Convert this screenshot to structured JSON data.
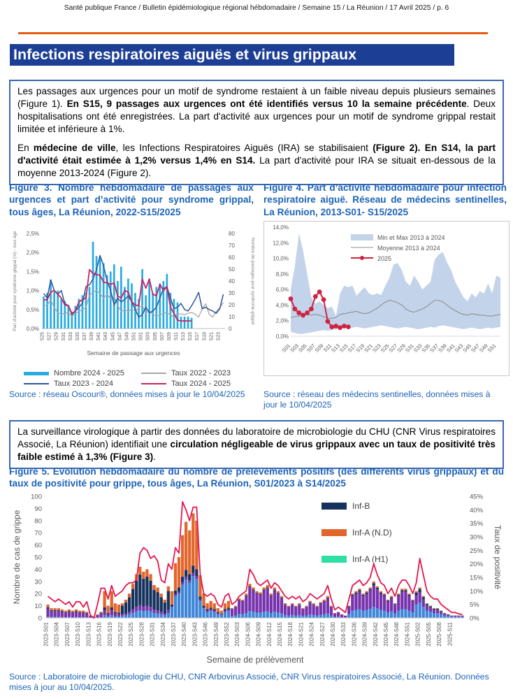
{
  "page": {
    "header": "Santé publique France / Bulletin épidémiologique régional hébdomadaire / Semaine 15 / La Réunion / 17 Avril 2025 / p. 6",
    "title": "Infections respiratoires aiguës et virus grippaux"
  },
  "colors": {
    "accent_orange": "#E75A12",
    "title_bar_blue": "#1C3E94",
    "caption_blue": "#1C63B8",
    "box_border_blue": "#3B66B0",
    "fig3_bar": "#29ABE2",
    "fig3_line_2022": "#A6A6A6",
    "fig3_line_2023": "#2F5597",
    "fig3_line_2024": "#C9215F",
    "fig4_band": "#C3D4EA",
    "fig4_mean": "#8F8F8F",
    "fig4_2025": "#CF2342",
    "fig5_navy": "#16335E",
    "fig5_orange": "#E2662C",
    "fig5_mint": "#2EDFA3",
    "fig5_purple": "#7633AD",
    "fig5_blue": "#3F86D8",
    "fig5_line": "#E3174F"
  },
  "box1": {
    "paragraphs": [
      [
        {
          "t": "Les passages aux urgences pour un motif de syndrome restaient à un faible niveau depuis plusieurs semaines (Figure 1). ",
          "b": 0
        },
        {
          "t": "En S15, 9 passages aux urgences ont été identifiés versus 10 la semaine précédente",
          "b": 1
        },
        {
          "t": ". Deux hospitalisations ont été enregistrées. La part d'activité aux urgences pour un motif de syndrome grippal restait limitée et inférieure à 1%.",
          "b": 0
        }
      ],
      [
        {
          "t": "En ",
          "b": 0
        },
        {
          "t": "médecine de ville",
          "b": 1
        },
        {
          "t": ", les Infections Respiratoires Aiguës (IRA) se stabilisaient ",
          "b": 0
        },
        {
          "t": "(Figure 2). En S14, la part d'activité était estimée à 1,2% versus 1,4% en S14.",
          "b": 1
        },
        {
          "t": " La part d'activité pour IRA se situait en-dessous de la moyenne 2013-2024 (Figure 2).",
          "b": 0
        }
      ]
    ]
  },
  "box2": {
    "paragraphs": [
      [
        {
          "t": "La surveillance virologique à partir des données du laboratoire de microbiologie du CHU (CNR Virus respiratoires Associé, La Réunion) identifiait une ",
          "b": 0
        },
        {
          "t": "circulation négligeable de virus grippaux avec un taux de positivité très faible estimé à 1,3% (Figure 3)",
          "b": 1
        },
        {
          "t": ".",
          "b": 0
        }
      ]
    ]
  },
  "figure3": {
    "caption": "Figure 3. Nombre hebdomadaire de passages aux urgences et part d’activité pour syndrome grippal, tous âges, La Réunion, 2022-S15/2025",
    "source": "Source : réseau Oscour®,  données mises à jour le 10/04/2025",
    "legend": [
      {
        "label": "Nombre 2024 - 2025",
        "color": "#29ABE2",
        "kind": "bar"
      },
      {
        "label": "Taux 2022 - 2023",
        "color": "#A6A6A6",
        "kind": "line"
      },
      {
        "label": "Taux 2023 - 2024",
        "color": "#2F5597",
        "kind": "line"
      },
      {
        "label": "Taux 2024 - 2025",
        "color": "#C9215F",
        "kind": "line"
      }
    ]
  },
  "figure4": {
    "caption": "Figure 4.  Part d’activité hebdomadaire pour infection respiratoire aiguë. Réseau de médecins sentinelles, La Réunion, 2013-S01-  S15/2025",
    "source": "Source : réseau des médecins sentinelles, données mises à jour le 10/04/2025"
  },
  "figure5": {
    "caption": "Figure 5. Evolution hebdomadaire du nombre de prélèvements positifs (des différents virus grippaux) et du taux de positivité pour grippe, tous âges, La Réunion, S01/2023 à S14/2025",
    "source": "Source : Laboratoire de microbiologie du CHU, CNR Arbovirus Associé, CNR Virus respiratoires Associé, La Réunion. Données mises à jour au 10/04/2025."
  },
  "chart_data": [
    {
      "id": "fig3",
      "type": "bar",
      "n_weeks": 52,
      "tick_labels": [
        "S25",
        "S27",
        "S29",
        "S31",
        "S33",
        "S35",
        "S37",
        "S39",
        "S41",
        "S43",
        "S45",
        "S47",
        "S49",
        "S51",
        "S01",
        "S03",
        "S05",
        "S07",
        "S09",
        "S11",
        "S13",
        "S15",
        "S17",
        "S19",
        "S21",
        "S23"
      ],
      "xlabel": "Semaine de passage aux urgences",
      "ylabel_left": "Part d'activité pour syndrome grippal (%) - tous âge",
      "ylabel_right": "Nombre de passages pour syndrome grippal",
      "ylim_left": [
        0,
        2.5
      ],
      "ylim_right": [
        0,
        80
      ],
      "yticks_left": [
        "0,0%",
        "0,5%",
        "1,0%",
        "1,5%",
        "2,0%",
        "2,5%"
      ],
      "yticks_right": [
        "0",
        "10",
        "20",
        "30",
        "40",
        "50",
        "60",
        "70",
        "80"
      ],
      "bars_name": "Nombre 2024 - 2025",
      "bars_color": "#29ABE2",
      "bars": [
        27,
        30,
        41,
        31,
        32,
        25,
        23,
        20,
        12,
        19,
        25,
        28,
        30,
        35,
        73,
        61,
        60,
        55,
        45,
        48,
        54,
        40,
        52,
        35,
        42,
        38,
        30,
        25,
        50,
        28,
        42,
        30,
        35,
        38,
        40,
        46,
        30,
        25,
        22,
        10,
        10,
        10,
        9
      ],
      "lines": [
        {
          "name": "Taux 2022 - 2023",
          "color": "#A6A6A6",
          "width": 1.3,
          "values": [
            0.6,
            0.62,
            0.75,
            0.55,
            0.42,
            0.38,
            0.4,
            0.42,
            0.32,
            0.4,
            0.45,
            0.5,
            0.55,
            0.88,
            0.95,
            1.0,
            0.92,
            0.8,
            0.9,
            0.78,
            0.85,
            0.6,
            0.45,
            0.5,
            0.45,
            0.52,
            0.45,
            0.55,
            0.6,
            0.42,
            0.45,
            0.38,
            0.32,
            0.36,
            0.4,
            0.42,
            0.36,
            0.3,
            0.4,
            0.38,
            0.36,
            0.4,
            0.42,
            0.38,
            0.3,
            0.52,
            0.65,
            0.38,
            0.3,
            0.45,
            0.55,
            0.68
          ]
        },
        {
          "name": "Taux 2023 - 2024",
          "color": "#2F5597",
          "width": 1.5,
          "values": [
            0.92,
            0.8,
            1.28,
            1.0,
            0.9,
            1.0,
            0.66,
            0.6,
            0.36,
            0.46,
            0.56,
            0.66,
            1.1,
            1.15,
            1.3,
            1.55,
            1.92,
            1.65,
            1.25,
            1.0,
            0.62,
            0.8,
            0.7,
            0.76,
            0.86,
            0.7,
            0.5,
            0.3,
            0.36,
            0.56,
            0.42,
            0.46,
            0.56,
            0.8,
            1.05,
            1.1,
            0.8,
            0.52,
            0.56,
            0.66,
            0.5,
            0.46,
            0.6,
            0.76,
            0.95,
            0.52,
            0.56,
            0.5,
            0.46,
            0.4,
            0.52,
            0.9
          ]
        },
        {
          "name": "Taux 2024 - 2025",
          "color": "#C9215F",
          "width": 1.8,
          "values": [
            0.75,
            0.76,
            0.96,
            1.0,
            0.9,
            0.8,
            0.62,
            0.6,
            0.4,
            0.46,
            0.7,
            0.76,
            0.8,
            1.55,
            1.45,
            1.42,
            1.4,
            1.22,
            1.2,
            1.16,
            1.2,
            0.86,
            0.8,
            1.0,
            0.96,
            0.7,
            0.62,
            0.6,
            1.3,
            1.06,
            1.3,
            0.9,
            0.86,
            1.16,
            1.0,
            1.1,
            0.56,
            0.4,
            0.22,
            0.2,
            0.2,
            0.2,
            0.2
          ]
        }
      ]
    },
    {
      "id": "fig4",
      "type": "area",
      "n_weeks": 52,
      "tick_labels": [
        "S01",
        "S03",
        "S05",
        "S07",
        "S09",
        "S11",
        "S13",
        "S15",
        "S17",
        "S19",
        "S21",
        "S23",
        "S25",
        "S27",
        "S29",
        "S31",
        "S33",
        "S35",
        "S37",
        "S39",
        "S41",
        "S43",
        "S45",
        "S47",
        "S49",
        "S51"
      ],
      "ylim": [
        0,
        14
      ],
      "yticks": [
        "0,0%",
        "2,0%",
        "4,0%",
        "6,0%",
        "8,0%",
        "10,0%",
        "12,0%",
        "14,0%"
      ],
      "legend": [
        {
          "label": "Min et Max 2013 à 2024",
          "color": "#C3D4EA",
          "kind": "band"
        },
        {
          "label": "Moyenne 2013 à 2024",
          "color": "#8F8F8F",
          "kind": "line"
        },
        {
          "label": "2025",
          "color": "#CF2342",
          "kind": "line-marker"
        }
      ],
      "band_max": [
        6.0,
        9.0,
        13.2,
        11.0,
        8.0,
        5.0,
        4.2,
        4.5,
        4.0,
        3.6,
        3.8,
        2.6,
        5.5,
        6.5,
        6.3,
        6.5,
        5.2,
        5.8,
        6.3,
        5.5,
        5.3,
        5.5,
        5.3,
        6.5,
        7.5,
        9.2,
        9.4,
        8.5,
        7.0,
        6.5,
        7.8,
        7.0,
        6.0,
        6.5,
        7.0,
        9.8,
        10.5,
        10.8,
        9.5,
        8.5,
        7.0,
        6.0,
        5.0,
        4.5,
        5.5,
        5.0,
        5.8,
        5.5,
        6.8,
        5.5,
        7.8,
        7.5
      ],
      "band_min": [
        0.6,
        0.4,
        0.3,
        0.3,
        0.4,
        0.5,
        0.6,
        0.7,
        0.8,
        0.7,
        0.8,
        0.9,
        1.0,
        1.1,
        1.0,
        1.1,
        1.2,
        1.1,
        1.0,
        1.1,
        1.2,
        1.3,
        1.4,
        1.3,
        1.2,
        1.1,
        1.0,
        1.1,
        1.2,
        1.1,
        1.0,
        0.9,
        1.0,
        1.1,
        1.2,
        1.1,
        1.3,
        1.4,
        1.3,
        1.2,
        1.1,
        1.0,
        0.9,
        1.0,
        1.1,
        1.0,
        0.9,
        1.0,
        1.1,
        1.0,
        1.1,
        1.2
      ],
      "mean": [
        2.4,
        2.5,
        2.6,
        2.7,
        2.8,
        2.7,
        2.8,
        2.7,
        2.5,
        2.3,
        2.3,
        2.4,
        2.8,
        2.9,
        3.0,
        3.1,
        3.2,
        3.0,
        2.9,
        3.0,
        3.3,
        3.6,
        4.0,
        4.4,
        4.6,
        4.5,
        4.3,
        4.0,
        3.5,
        3.2,
        3.1,
        3.3,
        3.5,
        3.8,
        4.2,
        4.6,
        4.6,
        4.4,
        4.0,
        3.6,
        3.3,
        3.0,
        2.8,
        2.7,
        2.9,
        2.8,
        2.7,
        2.7,
        2.6,
        2.6,
        2.7,
        2.8
      ],
      "y2025": [
        4.8,
        3.5,
        3.0,
        2.7,
        3.0,
        3.5,
        5.1,
        5.7,
        4.7,
        1.9,
        1.2,
        1.3,
        1.1,
        1.3,
        1.2
      ]
    },
    {
      "id": "fig5",
      "type": "stacked-bar",
      "n_weeks": 118,
      "tick_labels": [
        "2023-S01",
        "2023-S04",
        "2023-S07",
        "2023-S10",
        "2023-S13",
        "2023-S16",
        "2023-S19",
        "2023-S22",
        "2023-S25",
        "2023-S28",
        "2023-S31",
        "2023-S34",
        "2023-S37",
        "2023-S40",
        "2023-S43",
        "2023-S46",
        "2023-S49",
        "2023-S52",
        "2024-S03",
        "2024-S06",
        "2024-S09",
        "2024-S12",
        "2024-S15",
        "2024-S18",
        "2024-S21",
        "2024-S24",
        "2024-S27",
        "2024-S30",
        "2024-S33",
        "2024-S36",
        "2024-S39",
        "2024-S42",
        "2024-S45",
        "2024-S48",
        "2024-S51",
        "2025-S02",
        "2025-S05",
        "2025-S08",
        "2025-S11"
      ],
      "tick_step": 3,
      "xlabel": "Semaine de prélèvement",
      "ylabel_left": "Nombre de cas de grippe",
      "ylabel_right": "Taux de positivité",
      "ylim_left": [
        0,
        100
      ],
      "ylim_right": [
        0,
        45
      ],
      "yticks_left": [
        "0",
        "10",
        "20",
        "30",
        "40",
        "50",
        "60",
        "70",
        "80",
        "90",
        "100"
      ],
      "yticks_right": [
        "0%",
        "5%",
        "10%",
        "15%",
        "20%",
        "25%",
        "30%",
        "35%",
        "40%",
        "45%"
      ],
      "legend": [
        {
          "label": "Inf-B",
          "color": "#16335E"
        },
        {
          "label": "Inf-A (N.D)",
          "color": "#E2662C"
        },
        {
          "label": "Inf-A (H1)",
          "color": "#2EDFA3"
        }
      ],
      "series_colors": {
        "blue": "#3F86D8",
        "purple": "#7633AD",
        "navy": "#16335E",
        "orange": "#E2662C",
        "mint": "#2EDFA3"
      },
      "stack_order": [
        "blue",
        "purple",
        "navy",
        "orange",
        "mint"
      ],
      "totals": [
        11,
        8,
        8,
        8,
        7,
        6,
        7,
        6,
        7,
        6,
        6,
        5,
        2,
        1,
        3,
        5,
        22,
        10,
        22,
        12,
        11,
        12,
        15,
        20,
        28,
        36,
        42,
        38,
        40,
        36,
        27,
        25,
        20,
        15,
        26,
        22,
        45,
        50,
        68,
        79,
        72,
        86,
        80,
        35,
        20,
        12,
        14,
        12,
        8,
        6,
        12,
        14,
        8,
        10,
        16,
        15,
        20,
        28,
        25,
        22,
        21,
        25,
        27,
        20,
        25,
        22,
        18,
        12,
        10,
        12,
        10,
        12,
        8,
        10,
        14,
        12,
        10,
        13,
        15,
        18,
        10,
        4,
        5,
        3,
        2,
        10,
        20,
        22,
        24,
        20,
        22,
        25,
        30,
        26,
        22,
        20,
        15,
        18,
        12,
        20,
        24,
        24,
        20,
        15,
        22,
        25,
        18,
        12,
        10,
        8,
        8,
        6,
        4,
        3,
        2,
        2,
        2,
        2
      ],
      "eras": [
        {
          "from": 0,
          "to": 15,
          "split": {
            "blue": 0.1,
            "purple": 0.6,
            "navy": 0.1,
            "orange": 0.2,
            "mint": 0
          }
        },
        {
          "from": 16,
          "to": 20,
          "split": {
            "blue": 0.1,
            "purple": 0.2,
            "navy": 0.1,
            "orange": 0.6,
            "mint": 0
          }
        },
        {
          "from": 21,
          "to": 34,
          "split": {
            "blue": 0.15,
            "purple": 0.1,
            "navy": 0.6,
            "orange": 0.15,
            "mint": 0
          }
        },
        {
          "from": 35,
          "to": 44,
          "split": {
            "blue": 0.4,
            "purple": 0.03,
            "navy": 0.07,
            "orange": 0.5,
            "mint": 0
          }
        },
        {
          "from": 45,
          "to": 51,
          "split": {
            "blue": 0.4,
            "purple": 0.1,
            "navy": 0.1,
            "orange": 0.4,
            "mint": 0
          }
        },
        {
          "from": 52,
          "to": 84,
          "split": {
            "blue": 0.2,
            "purple": 0.7,
            "navy": 0.03,
            "orange": 0.07,
            "mint": 0
          }
        },
        {
          "from": 85,
          "to": 103,
          "split": {
            "blue": 0.3,
            "purple": 0.6,
            "navy": 0.05,
            "orange": 0.05,
            "mint": 0
          }
        },
        {
          "from": 104,
          "to": 117,
          "split": {
            "blue": 0.5,
            "purple": 0.35,
            "navy": 0.1,
            "orange": 0.05,
            "mint": 0
          }
        }
      ],
      "positivity_name": "Taux de positivité",
      "positivity_color": "#E3174F",
      "positivity": [
        8,
        7,
        6,
        7,
        6,
        5,
        6,
        4,
        6,
        6,
        4,
        6,
        1,
        0,
        5,
        11,
        11,
        7,
        12,
        8,
        9,
        10,
        12,
        13,
        13,
        14,
        24,
        26,
        25,
        22,
        23,
        21,
        14,
        13,
        20,
        18,
        26,
        24,
        43,
        40,
        36,
        41,
        41,
        16,
        9,
        8,
        9,
        8,
        5,
        4,
        8,
        9,
        5,
        6,
        8,
        9,
        10,
        18,
        16,
        13,
        12,
        13,
        14,
        11,
        13,
        12,
        10,
        8,
        7,
        8,
        7,
        8,
        6,
        7,
        9,
        8,
        7,
        8,
        9,
        12,
        7,
        3,
        4,
        3,
        2,
        7,
        12,
        13,
        14,
        12,
        13,
        15,
        20,
        16,
        13,
        12,
        9,
        11,
        8,
        12,
        14,
        14,
        12,
        9,
        13,
        22,
        16,
        10,
        8,
        7,
        7,
        5,
        4,
        3,
        2,
        2,
        1.5,
        1.3
      ]
    }
  ]
}
